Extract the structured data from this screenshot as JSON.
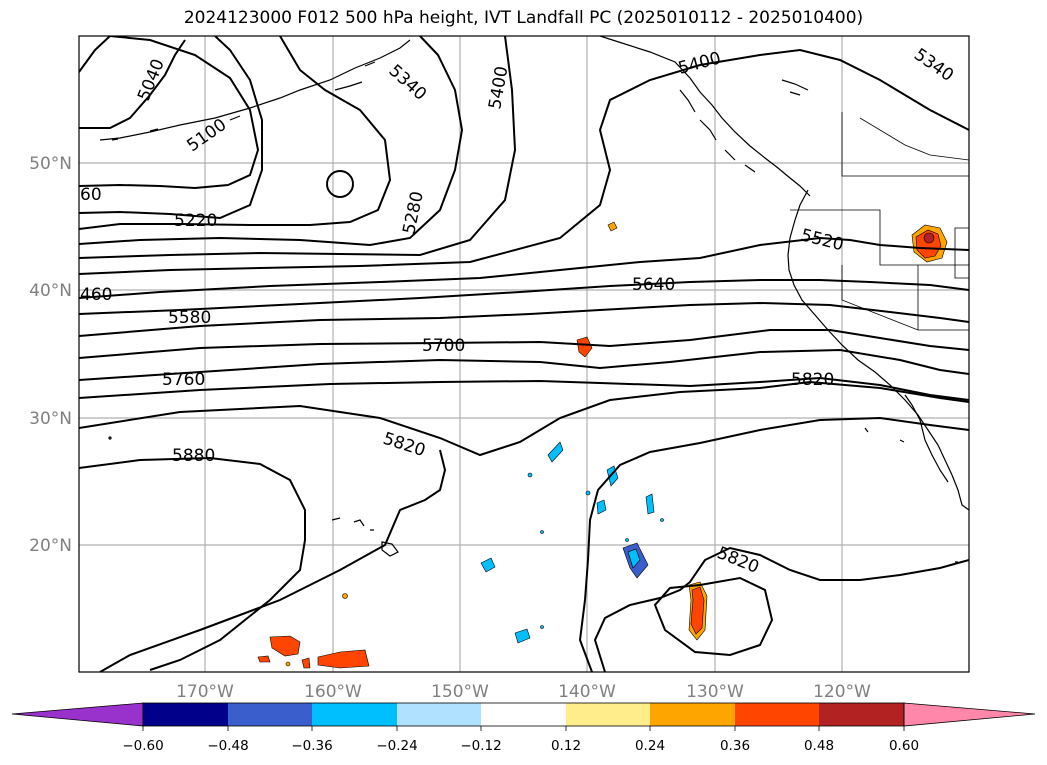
{
  "title": "2024123000 F012 500 hPa height, IVT Landfall PC (2025010112 - 2025010400)",
  "map": {
    "lat_labels": [
      "50°N",
      "40°N",
      "30°N",
      "20°N"
    ],
    "lon_labels": [
      "170°W",
      "160°W",
      "150°W",
      "140°W",
      "130°W",
      "120°W"
    ],
    "contour_labels": [
      "5040",
      "5100",
      "60",
      "5220",
      "460",
      "5580",
      "5760",
      "5880",
      "5340",
      "5400",
      "5400",
      "5340",
      "5280",
      "5520",
      "5640",
      "5700",
      "5820",
      "5820",
      "5820"
    ]
  },
  "colorbar": {
    "colors": [
      "#9932cc",
      "#00008b",
      "#3a5fcd",
      "#00bfff",
      "#b0e2ff",
      "#ffffff",
      "#ffec8b",
      "#ffa500",
      "#ff4500",
      "#b22222",
      "#ff88aa"
    ],
    "ticks": [
      "−0.60",
      "−0.48",
      "−0.36",
      "−0.24",
      "−0.12",
      "0.12",
      "0.24",
      "0.36",
      "0.48",
      "0.60"
    ]
  }
}
